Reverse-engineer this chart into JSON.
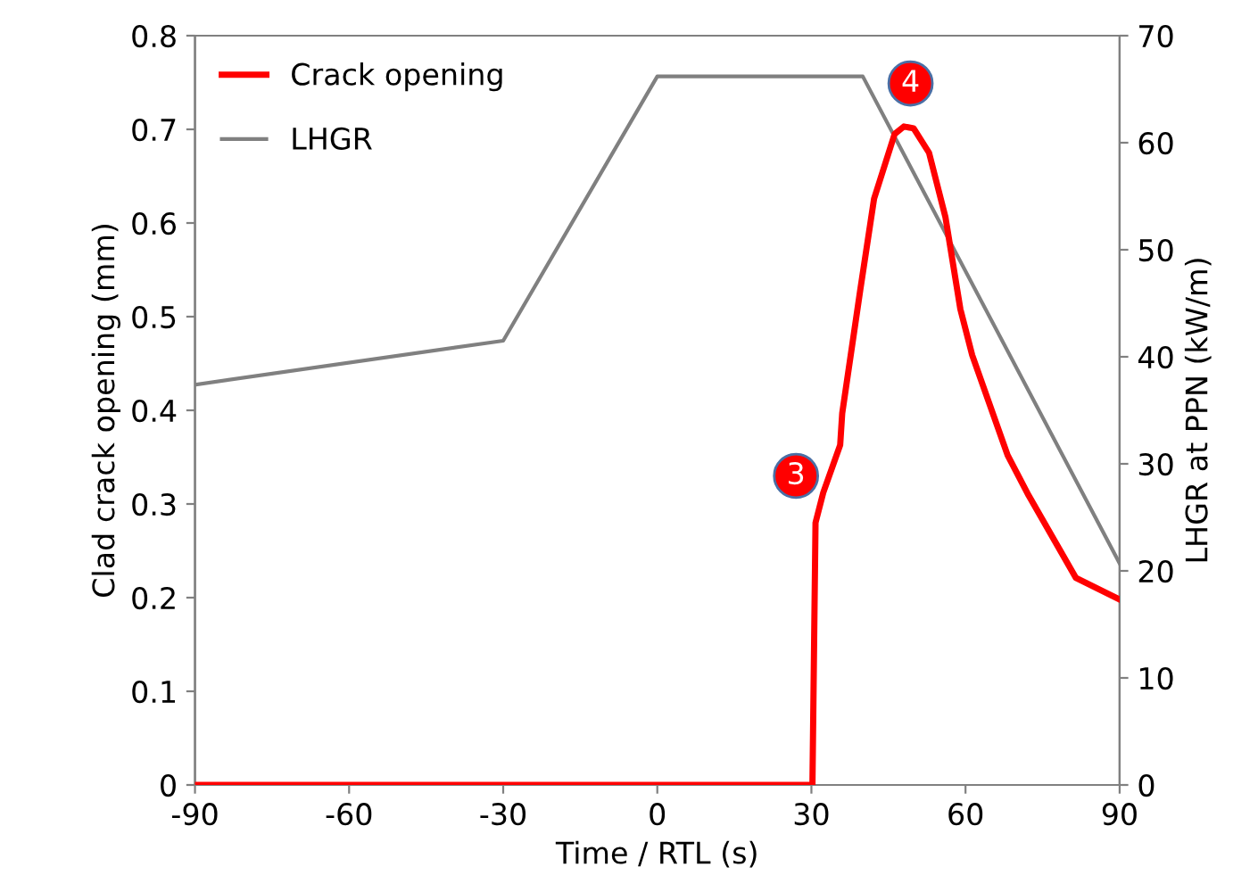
{
  "chart_data": {
    "type": "line",
    "xlabel": "Time / RTL (s)",
    "ylabel": "Clad crack opening (mm)",
    "y2label": "LHGR at PPN (kW/m)",
    "xlim": [
      -90,
      90
    ],
    "xticks": [
      -90,
      -60,
      -30,
      0,
      30,
      60,
      90
    ],
    "ylim": [
      0,
      0.8
    ],
    "yticks": [
      0,
      0.1,
      0.2,
      0.3,
      0.4,
      0.5,
      0.6,
      0.7,
      0.8
    ],
    "y2lim": [
      0,
      70
    ],
    "y2ticks": [
      0,
      10,
      20,
      30,
      40,
      50,
      60,
      70
    ],
    "grid": false,
    "legend": "top left",
    "marker": "none",
    "line_style": "solid",
    "series": [
      {
        "name": "Crack opening",
        "color": "#ff0000",
        "x": [
          -90,
          30.2,
          30.8,
          32.3,
          35.6,
          36.0,
          39.5,
          42.2,
          46.2,
          48.0,
          49.9,
          52.9,
          56.1,
          59.0,
          61.3,
          68.2,
          72.3,
          81.5,
          90
        ],
        "values": [
          0,
          0,
          0.28,
          0.312,
          0.363,
          0.397,
          0.528,
          0.626,
          0.695,
          0.703,
          0.701,
          0.675,
          0.606,
          0.508,
          0.459,
          0.352,
          0.309,
          0.221,
          0.198
        ]
      },
      {
        "name": "LHGR",
        "color": "#808080",
        "axis": "y2",
        "x": [
          -90,
          -30,
          0,
          40,
          90
        ],
        "values": [
          37.4,
          41.5,
          66.2,
          66.2,
          20.7
        ]
      }
    ],
    "annotations": [
      {
        "text": "3",
        "x": 27,
        "y": 0.33
      },
      {
        "text": "4",
        "x": 49.3,
        "y": 0.749
      }
    ]
  }
}
